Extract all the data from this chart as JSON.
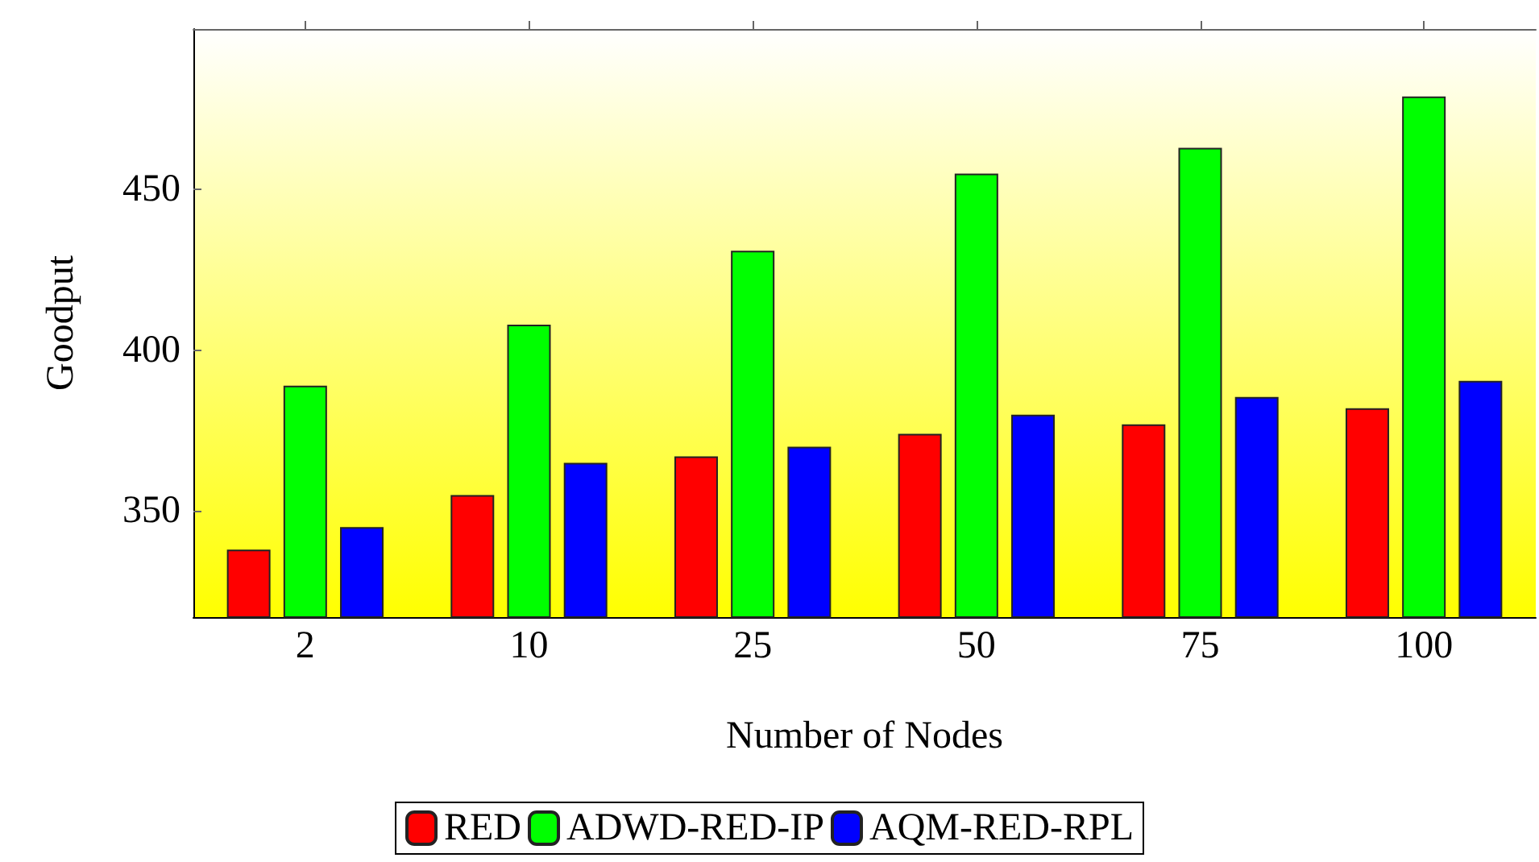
{
  "chart_data": {
    "type": "bar",
    "xlabel": "Number of Nodes",
    "ylabel": "Goodput",
    "categories": [
      "2",
      "10",
      "25",
      "50",
      "75",
      "100"
    ],
    "series": [
      {
        "name": "RED",
        "color": "#ff0000",
        "values": [
          338,
          355,
          367,
          374,
          377,
          382
        ]
      },
      {
        "name": "ADWD-RED-IP",
        "color": "#00ff00",
        "values": [
          389,
          408,
          431,
          455,
          463,
          479
        ]
      },
      {
        "name": "AQM-RED-RPL",
        "color": "#0000ff",
        "values": [
          345,
          365,
          370,
          380,
          385.5,
          390.5
        ]
      }
    ],
    "ylim": [
      317,
      500
    ],
    "yticks": [
      350,
      400,
      450
    ],
    "grid": false,
    "legend": "bottom"
  }
}
